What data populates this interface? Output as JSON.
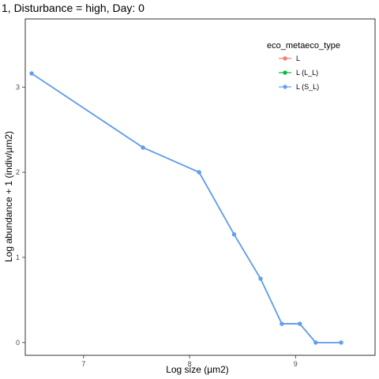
{
  "chart_data": {
    "type": "line",
    "title": "1, Disturbance = high, Day: 0",
    "xlabel": "Log size (µm2)",
    "ylabel": "Log abundance + 1 (indiv/µm2)",
    "xlim": [
      6.45,
      9.75
    ],
    "ylim": [
      -0.15,
      3.8
    ],
    "xticks": [
      7,
      8,
      9
    ],
    "yticks": [
      0,
      1,
      2,
      3
    ],
    "grid": false,
    "legend_position": "top-right",
    "legend_title": "eco_metaeco_type",
    "series": [
      {
        "name": "L",
        "color": "#F8766D",
        "x": [
          6.51,
          7.56,
          8.09,
          8.42,
          8.67,
          8.87,
          9.04,
          9.19,
          9.43
        ],
        "y": [
          3.16,
          2.29,
          2.0,
          1.27,
          0.75,
          0.22,
          0.22,
          0.0,
          0.0
        ]
      },
      {
        "name": "L (L_L)",
        "color": "#00BA38",
        "x": [
          6.51,
          7.56,
          8.09,
          8.42,
          8.67,
          8.87,
          9.04,
          9.19,
          9.43
        ],
        "y": [
          3.16,
          2.29,
          2.0,
          1.27,
          0.75,
          0.22,
          0.22,
          0.0,
          0.0
        ]
      },
      {
        "name": "L (S_L)",
        "color": "#619CFF",
        "x": [
          6.51,
          7.56,
          8.09,
          8.42,
          8.67,
          8.87,
          9.04,
          9.19,
          9.43
        ],
        "y": [
          3.16,
          2.29,
          2.0,
          1.27,
          0.75,
          0.22,
          0.22,
          0.0,
          0.0
        ]
      }
    ]
  }
}
